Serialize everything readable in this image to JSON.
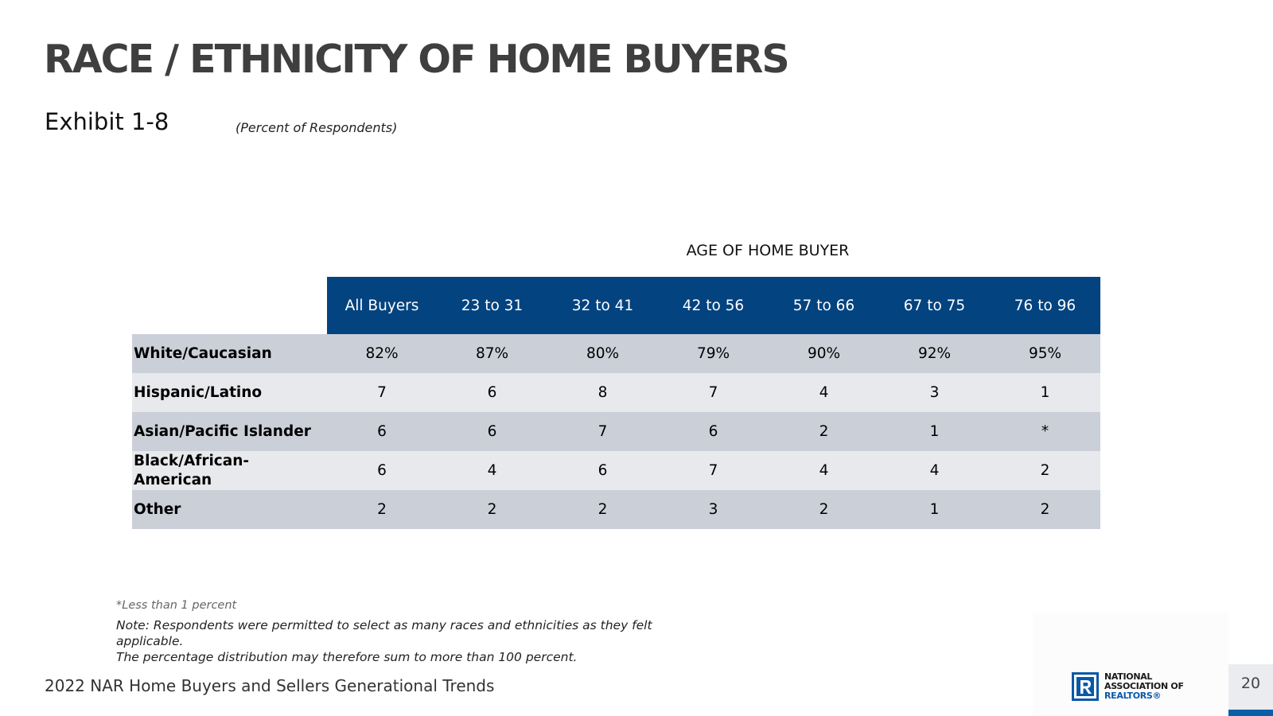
{
  "title": "RACE / ETHNICITY OF HOME BUYERS",
  "exhibit": "Exhibit 1-8",
  "unit_note": "(Percent of Respondents)",
  "table": {
    "group_header": "AGE OF HOME BUYER",
    "columns": [
      "All Buyers",
      "23 to 31",
      "32 to 41",
      "42 to 56",
      "57 to 66",
      "67 to 75",
      "76 to 96"
    ],
    "rows": [
      {
        "label": "White/Caucasian",
        "values": [
          "82%",
          "87%",
          "80%",
          "79%",
          "90%",
          "92%",
          "95%"
        ]
      },
      {
        "label": "Hispanic/Latino",
        "values": [
          "7",
          "6",
          "8",
          "7",
          "4",
          "3",
          "1"
        ]
      },
      {
        "label": "Asian/Pacific Islander",
        "values": [
          "6",
          "6",
          "7",
          "6",
          "2",
          "1",
          "*"
        ]
      },
      {
        "label": "Black/African-American",
        "values": [
          "6",
          "4",
          "6",
          "7",
          "4",
          "4",
          "2"
        ]
      },
      {
        "label": "Other",
        "values": [
          "2",
          "2",
          "2",
          "3",
          "2",
          "1",
          "2"
        ]
      }
    ],
    "header_color": "#03437f",
    "row_shades": [
      "#cbcfd8",
      "#e8e9ec"
    ]
  },
  "footnotes": {
    "star": "*Less than 1 percent",
    "note_line1": "Note: Respondents were permitted to select as many races and ethnicities as they felt applicable.",
    "note_line2": "The percentage distribution may therefore sum to more than 100 percent."
  },
  "footer": {
    "source": "2022 NAR Home Buyers and Sellers Generational Trends",
    "page_number": "20",
    "logo": {
      "icon": "nar-r-logo-icon",
      "line1": "NATIONAL",
      "line2": "ASSOCIATION OF",
      "line3": "REALTORS®",
      "color": "#0a58a8"
    }
  }
}
